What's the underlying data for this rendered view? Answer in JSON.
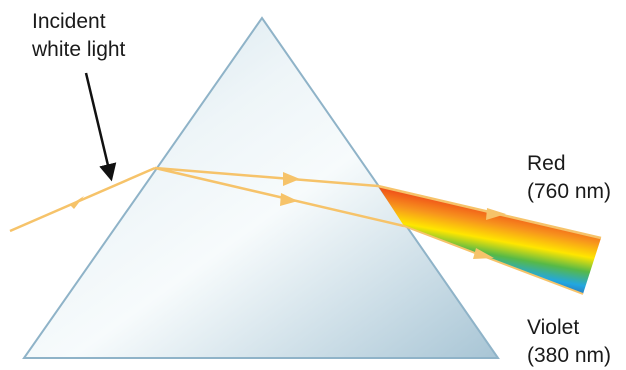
{
  "labels": {
    "incident_line1": "Incident",
    "incident_line2": "white light",
    "red_name": "Red",
    "red_wavelength": "(760 nm)",
    "violet_name": "Violet",
    "violet_wavelength": "(380 nm)"
  },
  "colors": {
    "light_ray": "#f6c36a",
    "prism_edge": "#8fb3c8",
    "prism_fill_light": "#f4f9fb",
    "prism_fill_dark": "#a9c6d6",
    "pointer_arrow": "#111111",
    "spectrum": [
      "#d21f1f",
      "#ef4a18",
      "#f7941d",
      "#ffe600",
      "#57b947",
      "#22a7e0",
      "#2f5aa8",
      "#4b2a86"
    ]
  }
}
